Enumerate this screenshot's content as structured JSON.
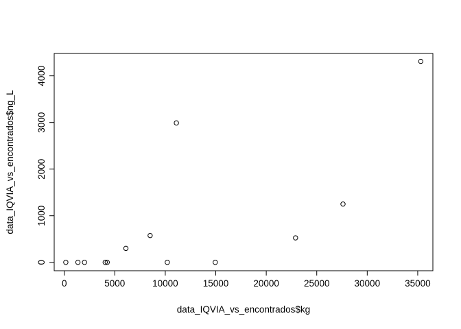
{
  "chart_data": {
    "type": "scatter",
    "title": "",
    "xlabel": "data_IQVIA_vs_encontrados$kg",
    "ylabel": "data_IQVIA_vs_encontrados$ng_L",
    "xlim": [
      -1000,
      36500
    ],
    "ylim": [
      -180,
      4480
    ],
    "xticks": [
      0,
      5000,
      10000,
      15000,
      20000,
      25000,
      30000,
      35000
    ],
    "yticks": [
      0,
      1000,
      2000,
      3000,
      4000
    ],
    "grid": false,
    "legend": "none",
    "marker": "open-circle",
    "points": [
      {
        "x": 150,
        "y": 0
      },
      {
        "x": 1350,
        "y": 0
      },
      {
        "x": 2000,
        "y": 0
      },
      {
        "x": 4050,
        "y": 0
      },
      {
        "x": 4250,
        "y": 0
      },
      {
        "x": 6100,
        "y": 300
      },
      {
        "x": 8500,
        "y": 575
      },
      {
        "x": 10200,
        "y": 0
      },
      {
        "x": 11100,
        "y": 2990
      },
      {
        "x": 14950,
        "y": 0
      },
      {
        "x": 22900,
        "y": 525
      },
      {
        "x": 27600,
        "y": 1250
      },
      {
        "x": 35300,
        "y": 4310
      }
    ]
  }
}
